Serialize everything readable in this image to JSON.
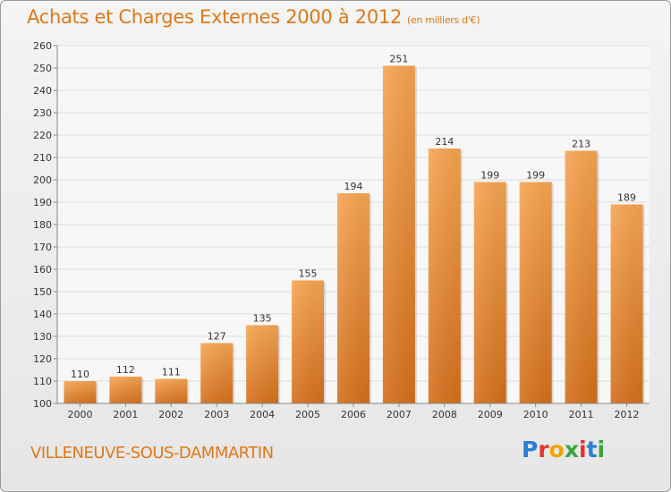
{
  "header": {
    "title": "Achats et Charges Externes 2000 à 2012",
    "subtitle": "(en milliers d'€)"
  },
  "footer": {
    "commune": "VILLENEUVE-SOUS-DAMMARTIN",
    "logo_letters": [
      "P",
      "r",
      "o",
      "x",
      "i",
      "t",
      "i"
    ],
    "logo_colors": [
      "#2a7fd4",
      "#e8312b",
      "#f2a200",
      "#3aa53a",
      "#e8312b",
      "#2a7fd4",
      "#3aa53a"
    ]
  },
  "chart_data": {
    "type": "bar",
    "categories": [
      "2000",
      "2001",
      "2002",
      "2003",
      "2004",
      "2005",
      "2006",
      "2007",
      "2008",
      "2009",
      "2010",
      "2011",
      "2012"
    ],
    "values": [
      110,
      112,
      111,
      127,
      135,
      155,
      194,
      251,
      214,
      199,
      199,
      213,
      189
    ],
    "ylim": [
      100,
      260
    ],
    "yticks": [
      100,
      110,
      120,
      130,
      140,
      150,
      160,
      170,
      180,
      190,
      200,
      210,
      220,
      230,
      240,
      250,
      260
    ],
    "grid": true,
    "bar_color_top": "#f7a552",
    "bar_color_bottom": "#d4701c"
  }
}
